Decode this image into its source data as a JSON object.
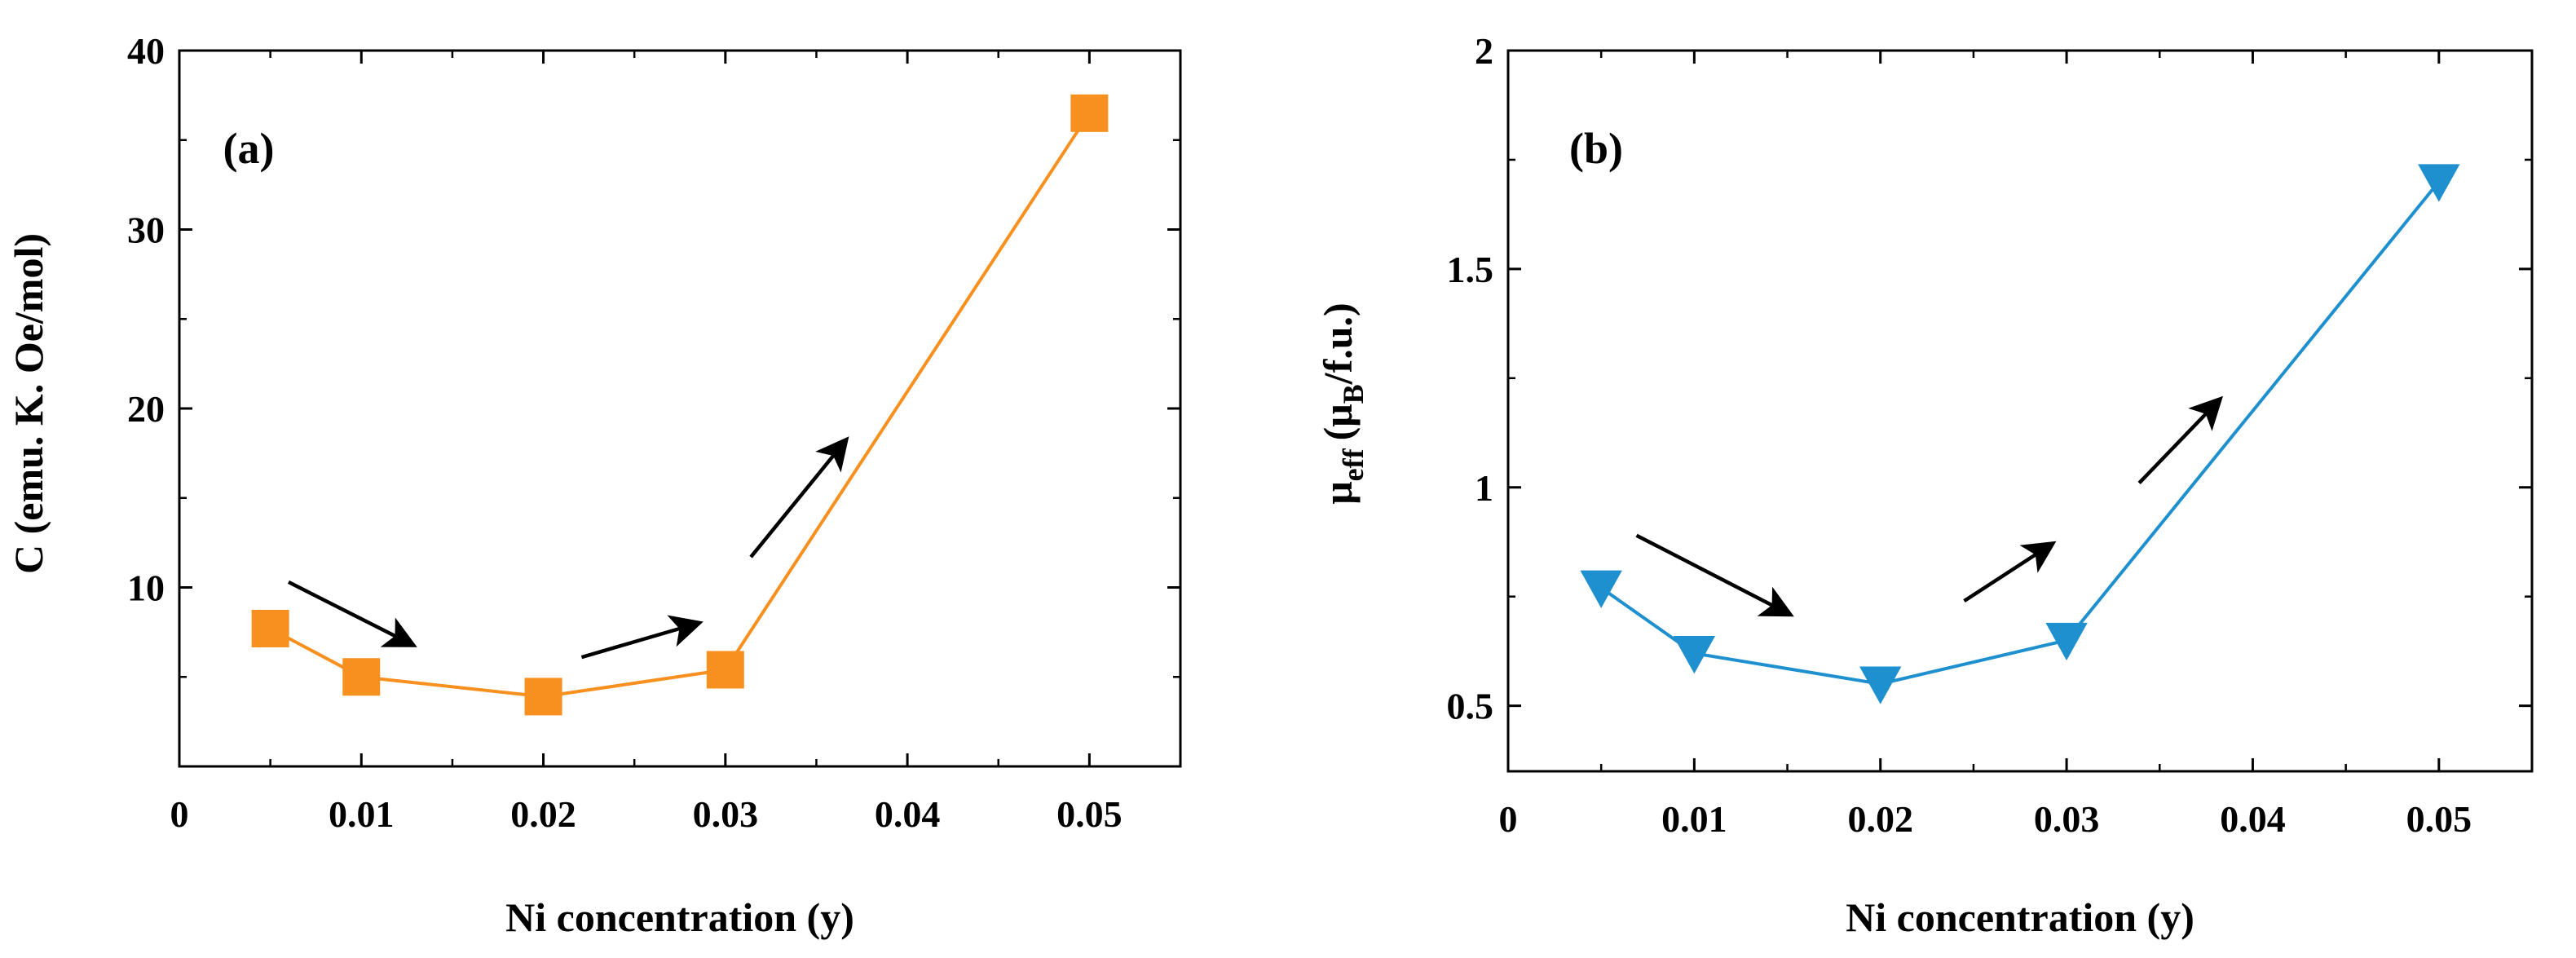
{
  "chart_data": [
    {
      "type": "line",
      "panel_label": "(a)",
      "title": "",
      "xlabel": "Ni concentration (y)",
      "ylabel": "C (emu. K. Oe/mol)",
      "xlim": [
        0,
        0.055
      ],
      "ylim": [
        0,
        40
      ],
      "xticks": [
        0,
        0.01,
        0.02,
        0.03,
        0.04,
        0.05
      ],
      "xtick_labels": [
        "0",
        "0.01",
        "0.02",
        "0.03",
        "0.04",
        "0.05"
      ],
      "yticks": [
        10,
        20,
        30,
        40
      ],
      "ytick_labels": [
        "10",
        "20",
        "30",
        "40"
      ],
      "grid": false,
      "marker": "square",
      "color": "#f7901e",
      "series": [
        {
          "name": "C",
          "x": [
            0.005,
            0.01,
            0.02,
            0.03,
            0.05
          ],
          "y": [
            7.7,
            5.0,
            3.9,
            5.4,
            36.5
          ]
        }
      ],
      "annotations": [
        {
          "type": "arrow",
          "from": [
            0.006,
            10.3
          ],
          "to": [
            0.0128,
            6.8
          ]
        },
        {
          "type": "arrow",
          "from": [
            0.0221,
            6.1
          ],
          "to": [
            0.0285,
            8.0
          ]
        },
        {
          "type": "arrow",
          "from": [
            0.0314,
            11.7
          ],
          "to": [
            0.0366,
            18.2
          ]
        }
      ]
    },
    {
      "type": "line",
      "panel_label": "(b)",
      "title": "",
      "xlabel": "Ni concentration (y)",
      "ylabel": "μeff (μB/f.u.)",
      "ylabel_parts": {
        "symbol": "μ",
        "symbol_sub": "eff",
        "open": "(μ",
        "unit_sub": "B",
        "close": "/f.u.)"
      },
      "xlim": [
        0,
        0.055
      ],
      "ylim": [
        0.35,
        2.0
      ],
      "xticks": [
        0,
        0.01,
        0.02,
        0.03,
        0.04,
        0.05
      ],
      "xtick_labels": [
        "0",
        "0.01",
        "0.02",
        "0.03",
        "0.04",
        "0.05"
      ],
      "yticks": [
        0.5,
        1.0,
        1.5,
        2.0
      ],
      "ytick_labels": [
        "0.5",
        "1",
        "1.5",
        "2"
      ],
      "grid": false,
      "marker": "triangle-down",
      "color": "#1e90cf",
      "series": [
        {
          "name": "μeff",
          "x": [
            0.005,
            0.01,
            0.02,
            0.03,
            0.05
          ],
          "y": [
            0.77,
            0.62,
            0.55,
            0.65,
            1.7
          ]
        }
      ],
      "annotations": [
        {
          "type": "arrow",
          "from": [
            0.0069,
            0.89
          ],
          "to": [
            0.0151,
            0.71
          ]
        },
        {
          "type": "arrow",
          "from": [
            0.0245,
            0.74
          ],
          "to": [
            0.0292,
            0.87
          ]
        },
        {
          "type": "arrow",
          "from": [
            0.0339,
            1.01
          ],
          "to": [
            0.0382,
            1.2
          ]
        }
      ]
    }
  ]
}
